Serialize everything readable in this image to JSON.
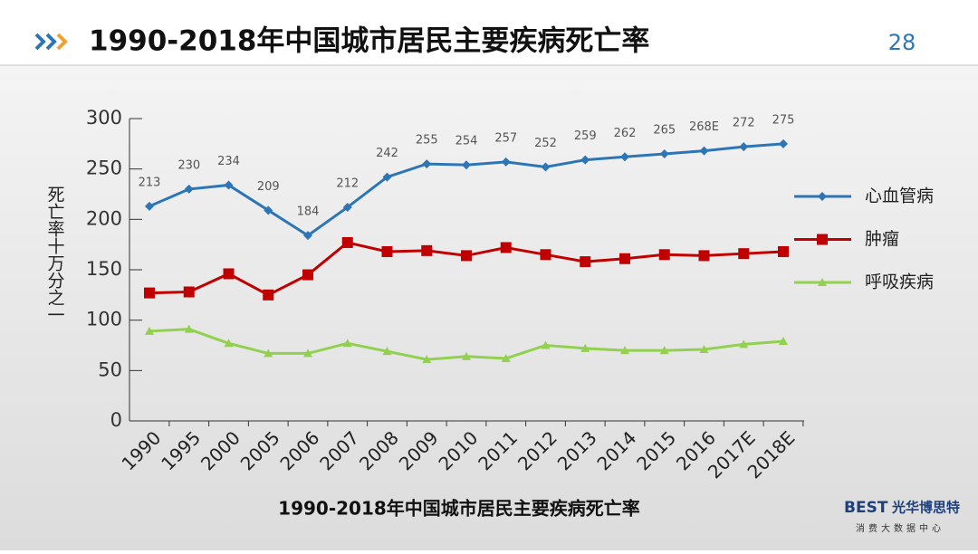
{
  "chart_data": {
    "type": "line",
    "title": "1990-2018年中国城市居民主要疾病死亡率",
    "x_axis_title": "1990-2018年中国城市居民主要疾病死亡率",
    "y_axis_title": "死亡率十万分之一",
    "categories": [
      "1990",
      "1995",
      "2000",
      "2005",
      "2006",
      "2007",
      "2008",
      "2009",
      "2010",
      "2011",
      "2012",
      "2013",
      "2014",
      "2015",
      "2016",
      "2017E",
      "2018E"
    ],
    "series": [
      {
        "name": "心血管病",
        "color": "#2e75b6",
        "values": [
          213,
          230,
          234,
          209,
          184,
          212,
          242,
          255,
          254,
          257,
          252,
          259,
          262,
          265,
          268,
          272,
          275
        ],
        "value_labels": [
          "213",
          "230",
          "234",
          "209",
          "184",
          "212",
          "242",
          "255",
          "254",
          "257",
          "252",
          "259",
          "262",
          "265",
          "268E",
          "272",
          "275"
        ]
      },
      {
        "name": "肿瘤",
        "color": "#c00000",
        "values": [
          127,
          128,
          146,
          125,
          145,
          177,
          168,
          169,
          164,
          172,
          165,
          158,
          161,
          165,
          164,
          166,
          168
        ]
      },
      {
        "name": "呼吸疾病",
        "color": "#92d050",
        "values": [
          89,
          91,
          77,
          67,
          67,
          77,
          69,
          61,
          64,
          62,
          75,
          72,
          70,
          70,
          71,
          76,
          79
        ]
      }
    ],
    "ylim": [
      0,
      300
    ],
    "yticks": [
      0,
      50,
      100,
      150,
      200,
      250,
      300
    ],
    "grid": false,
    "legend": "right"
  },
  "page_number": "28",
  "logo": {
    "brand": "BEST",
    "name": "光华博思特",
    "tagline": "消费大数据中心"
  }
}
